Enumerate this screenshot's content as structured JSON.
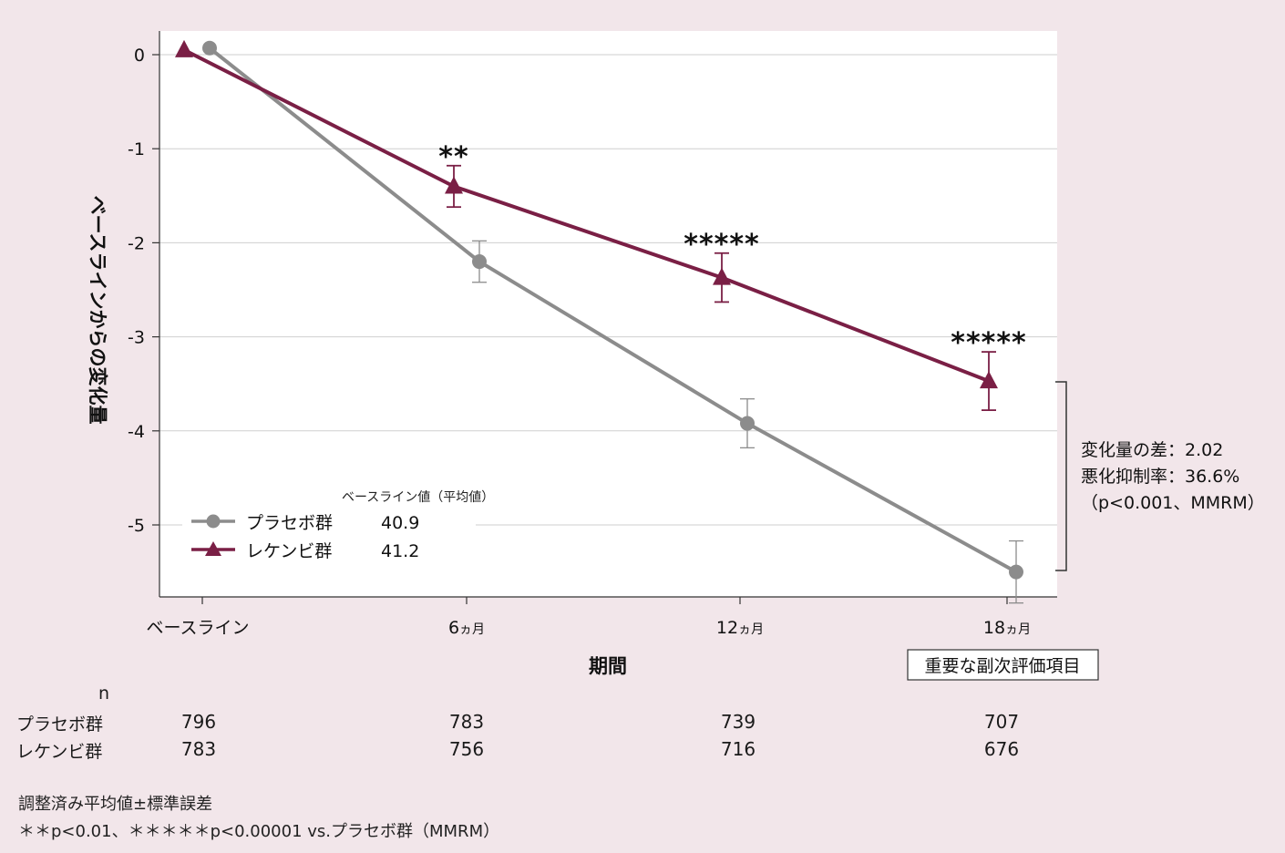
{
  "chart_data": {
    "type": "line",
    "title": "",
    "xlabel": "期間",
    "ylabel": "ベースラインからの変化量",
    "ylim": [
      -5.8,
      0.25
    ],
    "yticks": [
      "0",
      "-1",
      "-2",
      "-3",
      "-4",
      "-5"
    ],
    "categories": [
      "ベースライン",
      "6ヵ月",
      "12ヵ月",
      "18ヵ月"
    ],
    "category_label_parts": [
      {
        "num": "",
        "unit": "ベースライン"
      },
      {
        "num": "6",
        "unit": "ヵ月"
      },
      {
        "num": "12",
        "unit": "ヵ月"
      },
      {
        "num": "18",
        "unit": "ヵ月"
      }
    ],
    "grid": true,
    "series": [
      {
        "name": "プラセボ群",
        "baseline_mean": "40.9",
        "color": "#8c8c8c",
        "marker": "circle",
        "values": [
          0.07,
          -2.2,
          -3.92,
          -5.5
        ],
        "se": [
          0,
          0.22,
          0.26,
          0.33
        ]
      },
      {
        "name": "レケンビ群",
        "baseline_mean": "41.2",
        "color": "#7a1f45",
        "marker": "triangle",
        "values": [
          0.05,
          -1.4,
          -2.37,
          -3.47
        ],
        "se": [
          0,
          0.22,
          0.26,
          0.31
        ]
      }
    ],
    "significance": [
      "",
      "**",
      "*****",
      "*****"
    ],
    "legend": {
      "title": "ベースライン値（平均値）",
      "position": "bottom-left"
    },
    "difference_annotation": [
      "変化量の差：2.02",
      "悪化抑制率：36.6%",
      "（p<0.001、MMRM）"
    ],
    "key_endpoint_label": "重要な副次評価項目"
  },
  "n_table": {
    "header": "n",
    "rows": [
      {
        "label": "プラセボ群",
        "values": [
          "796",
          "783",
          "739",
          "707"
        ]
      },
      {
        "label": "レケンビ群",
        "values": [
          "783",
          "756",
          "716",
          "676"
        ]
      }
    ]
  },
  "footnotes": {
    "line1": "調整済み平均値±標準誤差",
    "line2": "＊＊p<0.01、＊＊＊＊＊p<0.00001 vs.プラセボ群（MMRM）"
  }
}
